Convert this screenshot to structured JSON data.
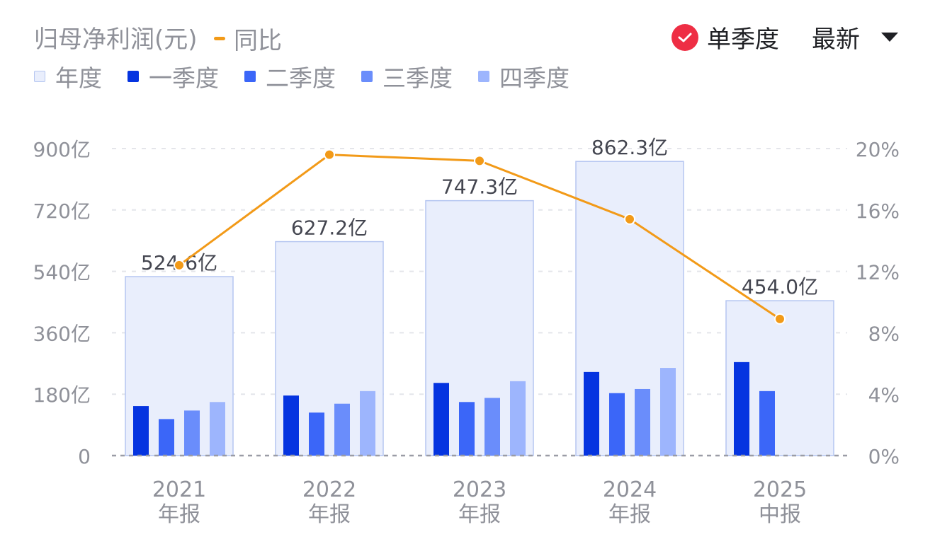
{
  "header": {
    "title": "归母净利润(元)",
    "line_label": "同比",
    "single_quarter_label": "单季度",
    "latest_label": "最新"
  },
  "chart_data": {
    "type": "bar",
    "categories": [
      {
        "year": "2021",
        "period": "年报"
      },
      {
        "year": "2022",
        "period": "年报"
      },
      {
        "year": "2023",
        "period": "年报"
      },
      {
        "year": "2024",
        "period": "年报"
      },
      {
        "year": "2025",
        "period": "中报"
      }
    ],
    "y_left": {
      "ticks": [
        "0",
        "180亿",
        "360亿",
        "540亿",
        "720亿",
        "900亿"
      ],
      "max": 900
    },
    "y_right": {
      "ticks": [
        "0%",
        "4%",
        "8%",
        "12%",
        "16%",
        "20%"
      ],
      "max": 20
    },
    "series": [
      {
        "name": "年度",
        "color": "#e9eefc",
        "border": "#b5c6f1",
        "values": [
          524.6,
          627.2,
          747.3,
          862.3,
          454.0
        ],
        "labels": [
          "524.6亿",
          "627.2亿",
          "747.3亿",
          "862.3亿",
          "454.0亿"
        ]
      },
      {
        "name": "一季度",
        "color": "#0534e0",
        "values": [
          145,
          176,
          213,
          245,
          274
        ]
      },
      {
        "name": "二季度",
        "color": "#3b66f8",
        "values": [
          107,
          126,
          157,
          183,
          189
        ]
      },
      {
        "name": "三季度",
        "color": "#6a8dfb",
        "values": [
          132,
          152,
          169,
          195,
          null
        ]
      },
      {
        "name": "四季度",
        "color": "#9db5fd",
        "values": [
          157,
          189,
          218,
          257,
          null
        ]
      }
    ],
    "line": {
      "name": "同比",
      "color": "#f29a18",
      "values": [
        12.4,
        19.6,
        19.2,
        15.4,
        8.9
      ]
    },
    "grid": true
  }
}
